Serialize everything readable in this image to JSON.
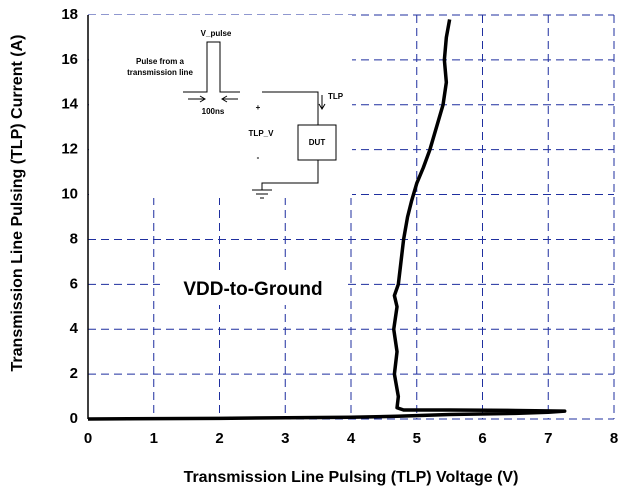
{
  "chart_data": {
    "type": "line",
    "xlabel": "Transmission Line Pulsing (TLP) Voltage (V)",
    "ylabel": "Transmission Line Pulsing (TLP) Current (A)",
    "annotation": "VDD-to-Ground",
    "inset": {
      "pulse_label": "V_pulse",
      "pulse_text_1": "Pulse from a",
      "pulse_text_2": "transmission line",
      "width_label": "100ns",
      "current_label": "TLP",
      "plus": "+",
      "voltage_label": "TLP_V",
      "device": "DUT",
      "minus": "-"
    },
    "xlim": [
      0,
      8
    ],
    "xticks": [
      0,
      1,
      2,
      3,
      4,
      5,
      6,
      7,
      8
    ],
    "ylim": [
      0,
      18
    ],
    "yticks": [
      0,
      2,
      4,
      6,
      8,
      10,
      12,
      14,
      16,
      18
    ],
    "grid": true,
    "grid_color": "#1f2f9f",
    "series": [
      {
        "color": "#000000",
        "x": [
          0,
          2,
          4,
          4.7,
          5.5,
          6.5,
          7.0,
          7.25,
          6.5,
          5.5,
          4.8,
          4.7,
          4.72,
          4.66,
          4.7,
          4.65,
          4.7,
          4.66,
          4.72,
          4.76,
          4.8,
          4.86,
          4.92,
          5.0,
          5.1,
          5.2,
          5.3,
          5.4,
          5.45,
          5.42,
          5.45,
          5.5
        ],
        "values": [
          0,
          0.03,
          0.08,
          0.12,
          0.2,
          0.25,
          0.3,
          0.35,
          0.38,
          0.4,
          0.4,
          0.5,
          1,
          2,
          3,
          4,
          5,
          5.5,
          6,
          7,
          8,
          9,
          9.7,
          10.5,
          11.2,
          12,
          13,
          14,
          15,
          16,
          17,
          17.8
        ]
      }
    ]
  }
}
